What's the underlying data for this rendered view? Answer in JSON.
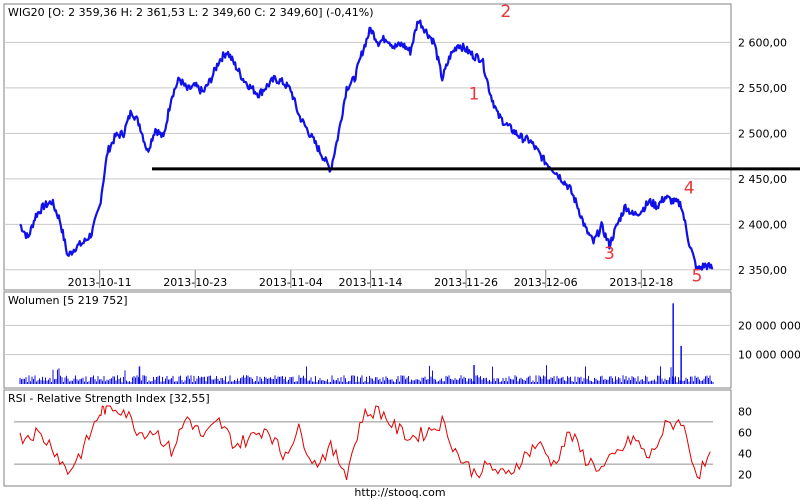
{
  "footer_url": "http://stooq.com",
  "colors": {
    "price": "#1010e8",
    "volume": "#1010e8",
    "rsi": "#e00000",
    "annotation": "#e8343a",
    "support": "#000000",
    "grid": "#c8c8c8"
  },
  "chart_data": [
    {
      "type": "line",
      "title": "WIG20 [O: 2 359,36  H: 2 361,53  L: 2 349,60  C: 2 349,60] (-0,41%)",
      "x_tick_labels": [
        "2013-10-11",
        "2013-10-23",
        "2013-11-04",
        "2013-11-14",
        "2013-11-26",
        "2013-12-06",
        "2013-12-18"
      ],
      "y_tick_labels": [
        "2 600,00",
        "2 550,00",
        "2 500,00",
        "2 450,00",
        "2 400,00",
        "2 350,00"
      ],
      "ylim": [
        2330,
        2640
      ],
      "support_level": 2461,
      "annotations": [
        {
          "label": "1",
          "date": "2013-11-27",
          "value": 2537
        },
        {
          "label": "2",
          "date": "2013-12-01",
          "value": 2628
        },
        {
          "label": "3",
          "date": "2013-12-14",
          "value": 2362
        },
        {
          "label": "4",
          "date": "2013-12-24",
          "value": 2434
        },
        {
          "label": "5",
          "date": "2013-12-25",
          "value": 2337
        }
      ],
      "series": [
        {
          "values": [
            [
              "2013-10-01",
              2400
            ],
            [
              "2013-10-02",
              2385
            ],
            [
              "2013-10-03",
              2410
            ],
            [
              "2013-10-04",
              2420
            ],
            [
              "2013-10-05",
              2425
            ],
            [
              "2013-10-06",
              2405
            ],
            [
              "2013-10-07",
              2365
            ],
            [
              "2013-10-08",
              2375
            ],
            [
              "2013-10-09",
              2380
            ],
            [
              "2013-10-10",
              2390
            ],
            [
              "2013-10-11",
              2420
            ],
            [
              "2013-10-12",
              2480
            ],
            [
              "2013-10-13",
              2497
            ],
            [
              "2013-10-14",
              2500
            ],
            [
              "2013-10-15",
              2525
            ],
            [
              "2013-10-16",
              2510
            ],
            [
              "2013-10-17",
              2480
            ],
            [
              "2013-10-18",
              2505
            ],
            [
              "2013-10-19",
              2495
            ],
            [
              "2013-10-20",
              2540
            ],
            [
              "2013-10-21",
              2560
            ],
            [
              "2013-10-22",
              2548
            ],
            [
              "2013-10-23",
              2552
            ],
            [
              "2013-10-24",
              2545
            ],
            [
              "2013-10-25",
              2560
            ],
            [
              "2013-10-26",
              2580
            ],
            [
              "2013-10-27",
              2590
            ],
            [
              "2013-10-28",
              2575
            ],
            [
              "2013-10-29",
              2560
            ],
            [
              "2013-10-30",
              2550
            ],
            [
              "2013-10-31",
              2543
            ],
            [
              "2013-11-01",
              2552
            ],
            [
              "2013-11-02",
              2560
            ],
            [
              "2013-11-03",
              2556
            ],
            [
              "2013-11-04",
              2548
            ],
            [
              "2013-11-05",
              2520
            ],
            [
              "2013-11-06",
              2505
            ],
            [
              "2013-11-07",
              2490
            ],
            [
              "2013-11-08",
              2475
            ],
            [
              "2013-11-09",
              2460
            ],
            [
              "2013-11-10",
              2500
            ],
            [
              "2013-11-11",
              2550
            ],
            [
              "2013-11-12",
              2560
            ],
            [
              "2013-11-13",
              2590
            ],
            [
              "2013-11-14",
              2615
            ],
            [
              "2013-11-15",
              2600
            ],
            [
              "2013-11-16",
              2605
            ],
            [
              "2013-11-17",
              2595
            ],
            [
              "2013-11-18",
              2598
            ],
            [
              "2013-11-19",
              2590
            ],
            [
              "2013-11-20",
              2625
            ],
            [
              "2013-11-21",
              2612
            ],
            [
              "2013-11-22",
              2600
            ],
            [
              "2013-11-23",
              2560
            ],
            [
              "2013-11-24",
              2585
            ],
            [
              "2013-11-25",
              2598
            ],
            [
              "2013-11-26",
              2592
            ],
            [
              "2013-11-27",
              2585
            ],
            [
              "2013-11-28",
              2582
            ],
            [
              "2013-11-29",
              2545
            ],
            [
              "2013-11-30",
              2520
            ],
            [
              "2013-12-01",
              2510
            ],
            [
              "2013-12-02",
              2502
            ],
            [
              "2013-12-03",
              2495
            ],
            [
              "2013-12-04",
              2492
            ],
            [
              "2013-12-05",
              2480
            ],
            [
              "2013-12-06",
              2468
            ],
            [
              "2013-12-07",
              2460
            ],
            [
              "2013-12-08",
              2450
            ],
            [
              "2013-12-09",
              2440
            ],
            [
              "2013-12-10",
              2420
            ],
            [
              "2013-12-11",
              2395
            ],
            [
              "2013-12-12",
              2380
            ],
            [
              "2013-12-13",
              2398
            ],
            [
              "2013-12-14",
              2377
            ],
            [
              "2013-12-15",
              2400
            ],
            [
              "2013-12-16",
              2420
            ],
            [
              "2013-12-17",
              2410
            ],
            [
              "2013-12-18",
              2415
            ],
            [
              "2013-12-19",
              2425
            ],
            [
              "2013-12-20",
              2420
            ],
            [
              "2013-12-21",
              2430
            ],
            [
              "2013-12-22",
              2425
            ],
            [
              "2013-12-23",
              2422
            ],
            [
              "2013-12-24",
              2380
            ],
            [
              "2013-12-25",
              2350
            ],
            [
              "2013-12-26",
              2355
            ],
            [
              "2013-12-27",
              2352
            ]
          ]
        }
      ]
    },
    {
      "type": "bar",
      "title": "Wolumen [5 219 752]",
      "y_tick_labels": [
        "20 000 000",
        "10 000 000"
      ],
      "ylim": [
        0,
        30000000
      ],
      "spikes": [
        {
          "date": "2013-10-16",
          "value": 6000000
        },
        {
          "date": "2013-11-27",
          "value": 6500000
        },
        {
          "date": "2013-12-22",
          "value": 27500000
        },
        {
          "date": "2013-12-23",
          "value": 13000000
        }
      ],
      "series": [
        {
          "baseline": 2000000
        }
      ]
    },
    {
      "type": "line",
      "title": "RSI - Relative Strength Index [32,55]",
      "y_tick_labels": [
        "80",
        "60",
        "40",
        "20"
      ],
      "ylim": [
        15,
        85
      ],
      "levels": [
        30,
        70
      ],
      "series": [
        {
          "values": [
            [
              "2013-10-01",
              55
            ],
            [
              "2013-10-03",
              60
            ],
            [
              "2013-10-05",
              48
            ],
            [
              "2013-10-07",
              22
            ],
            [
              "2013-10-09",
              45
            ],
            [
              "2013-10-11",
              78
            ],
            [
              "2013-10-12",
              85
            ],
            [
              "2013-10-14",
              82
            ],
            [
              "2013-10-16",
              60
            ],
            [
              "2013-10-18",
              62
            ],
            [
              "2013-10-20",
              42
            ],
            [
              "2013-10-22",
              75
            ],
            [
              "2013-10-24",
              55
            ],
            [
              "2013-10-26",
              70
            ],
            [
              "2013-10-28",
              48
            ],
            [
              "2013-10-30",
              55
            ],
            [
              "2013-11-01",
              65
            ],
            [
              "2013-11-03",
              38
            ],
            [
              "2013-11-05",
              62
            ],
            [
              "2013-11-07",
              30
            ],
            [
              "2013-11-09",
              45
            ],
            [
              "2013-11-11",
              22
            ],
            [
              "2013-11-13",
              75
            ],
            [
              "2013-11-15",
              82
            ],
            [
              "2013-11-17",
              65
            ],
            [
              "2013-11-19",
              55
            ],
            [
              "2013-11-21",
              60
            ],
            [
              "2013-11-23",
              70
            ],
            [
              "2013-11-25",
              38
            ],
            [
              "2013-11-27",
              22
            ],
            [
              "2013-11-29",
              28
            ],
            [
              "2013-12-01",
              18
            ],
            [
              "2013-12-03",
              35
            ],
            [
              "2013-12-05",
              50
            ],
            [
              "2013-12-07",
              30
            ],
            [
              "2013-12-09",
              60
            ],
            [
              "2013-12-11",
              35
            ],
            [
              "2013-12-13",
              25
            ],
            [
              "2013-12-15",
              40
            ],
            [
              "2013-12-17",
              55
            ],
            [
              "2013-12-19",
              35
            ],
            [
              "2013-12-21",
              65
            ],
            [
              "2013-12-23",
              72
            ],
            [
              "2013-12-25",
              20
            ],
            [
              "2013-12-27",
              38
            ]
          ]
        }
      ]
    }
  ]
}
